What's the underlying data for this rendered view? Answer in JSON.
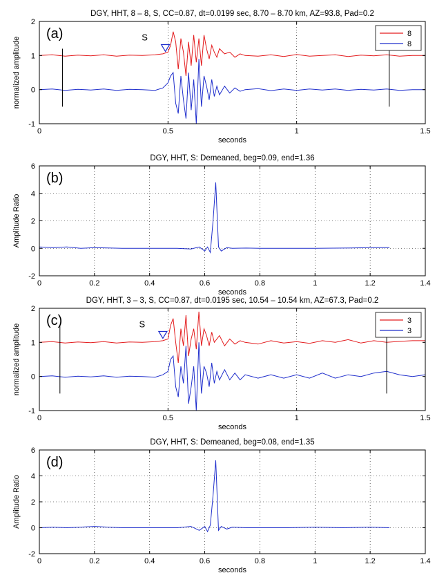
{
  "chart_data": [
    {
      "type": "line",
      "panel_label": "(a)",
      "title": "DGY, HHT, 8 – 8, S, CC=0.87,  dt=0.0199 sec,  8.70 – 8.70 km, AZ=93.8, Pad=0.2",
      "xlabel": "seconds",
      "ylabel": "normalized amplitude",
      "xlim": [
        0,
        1.5
      ],
      "ylim": [
        -1,
        2
      ],
      "xticks": [
        0,
        0.5,
        1,
        1.5
      ],
      "yticks": [
        -1,
        0,
        1,
        2
      ],
      "xtick_labels": [
        "0",
        "0.5",
        "1",
        "1.5"
      ],
      "ytick_labels": [
        "-1",
        "0",
        "1",
        "2"
      ],
      "grid": "dotted-vertical",
      "legend": {
        "placement": "top-right",
        "entries": [
          "8",
          "8"
        ]
      },
      "phase_pick": {
        "label": "S",
        "x": 0.49,
        "y": 1.2
      },
      "window_markers": [
        {
          "x": 0.09,
          "y_from": -0.5,
          "y_to": 1.2
        },
        {
          "x": 1.36,
          "y_from": -0.5,
          "y_to": 1.2
        }
      ],
      "series": [
        {
          "name": "8",
          "color": "#e31a1c",
          "x": [
            0,
            0.05,
            0.1,
            0.15,
            0.2,
            0.25,
            0.3,
            0.35,
            0.4,
            0.45,
            0.48,
            0.5,
            0.51,
            0.52,
            0.53,
            0.54,
            0.55,
            0.56,
            0.57,
            0.58,
            0.59,
            0.6,
            0.61,
            0.62,
            0.63,
            0.64,
            0.65,
            0.66,
            0.67,
            0.68,
            0.69,
            0.7,
            0.72,
            0.74,
            0.76,
            0.78,
            0.8,
            0.85,
            0.9,
            0.95,
            1.0,
            1.05,
            1.1,
            1.15,
            1.2,
            1.25,
            1.3,
            1.35,
            1.4,
            1.45,
            1.5
          ],
          "y": [
            1.0,
            1.02,
            0.98,
            1.01,
            0.99,
            1.02,
            0.98,
            1.01,
            1.0,
            1.02,
            1.05,
            1.1,
            1.3,
            1.7,
            1.4,
            0.6,
            1.5,
            1.1,
            0.4,
            1.4,
            0.7,
            1.6,
            0.8,
            1.5,
            0.7,
            1.6,
            1.2,
            0.9,
            1.3,
            1.1,
            0.95,
            1.2,
            1.05,
            1.1,
            0.95,
            1.05,
            1.0,
            0.98,
            1.02,
            0.97,
            1.03,
            0.98,
            1.0,
            1.02,
            0.97,
            1.01,
            0.99,
            1.02,
            0.98,
            1.0,
            1.0
          ]
        },
        {
          "name": "8",
          "color": "#1f2ecc",
          "x": [
            0,
            0.05,
            0.1,
            0.15,
            0.2,
            0.25,
            0.3,
            0.35,
            0.4,
            0.45,
            0.48,
            0.5,
            0.51,
            0.52,
            0.53,
            0.54,
            0.55,
            0.56,
            0.57,
            0.58,
            0.59,
            0.6,
            0.61,
            0.62,
            0.63,
            0.64,
            0.65,
            0.66,
            0.67,
            0.68,
            0.69,
            0.7,
            0.72,
            0.74,
            0.76,
            0.78,
            0.8,
            0.85,
            0.9,
            0.95,
            1.0,
            1.05,
            1.1,
            1.15,
            1.2,
            1.25,
            1.3,
            1.35,
            1.4,
            1.45,
            1.5
          ],
          "y": [
            0.0,
            0.02,
            -0.02,
            0.01,
            -0.01,
            0.02,
            -0.02,
            0.01,
            0.0,
            -0.02,
            0.05,
            0.2,
            0.4,
            0.5,
            -0.4,
            -0.7,
            0.4,
            -0.3,
            -0.85,
            0.5,
            -0.6,
            0.3,
            -1.0,
            0.9,
            -0.5,
            0.4,
            0.1,
            -0.3,
            0.3,
            -0.2,
            0.1,
            -0.15,
            0.1,
            -0.1,
            0.05,
            -0.05,
            0.0,
            0.03,
            -0.03,
            0.02,
            -0.02,
            0.02,
            -0.01,
            0.02,
            -0.02,
            0.01,
            -0.01,
            0.02,
            -0.02,
            0.0,
            0.0
          ]
        }
      ]
    },
    {
      "type": "line",
      "panel_label": "(b)",
      "title": "DGY, HHT, S: Demeaned, beg=0.09, end=1.36",
      "xlabel": "seconds",
      "ylabel": "Amplitude Ratio",
      "xlim": [
        0,
        1.4
      ],
      "ylim": [
        -2,
        6
      ],
      "xticks": [
        0,
        0.2,
        0.4,
        0.6,
        0.8,
        1,
        1.2,
        1.4
      ],
      "yticks": [
        -2,
        0,
        2,
        4,
        6
      ],
      "xtick_labels": [
        "0",
        "0.2",
        "0.4",
        "0.6",
        "0.8",
        "1",
        "1.2",
        "1.4"
      ],
      "ytick_labels": [
        "-2",
        "0",
        "2",
        "4",
        "6"
      ],
      "grid": "dotted-both",
      "series": [
        {
          "name": "",
          "color": "#1f2ecc",
          "x": [
            0,
            0.05,
            0.1,
            0.15,
            0.2,
            0.3,
            0.4,
            0.5,
            0.55,
            0.58,
            0.6,
            0.61,
            0.62,
            0.63,
            0.64,
            0.65,
            0.66,
            0.68,
            0.7,
            0.75,
            0.8,
            0.9,
            1.0,
            1.1,
            1.2,
            1.27
          ],
          "y": [
            0.1,
            0.05,
            0.1,
            0.0,
            0.05,
            0.0,
            0.0,
            0.0,
            -0.05,
            0.1,
            -0.2,
            0.1,
            -0.3,
            2.0,
            4.8,
            0.1,
            -0.2,
            0.05,
            0.0,
            0.02,
            0.0,
            0.0,
            0.0,
            0.02,
            0.05,
            0.05
          ]
        }
      ]
    },
    {
      "type": "line",
      "panel_label": "(c)",
      "title": "DGY, HHT, 3 – 3, S, CC=0.87,  dt=0.0195 sec,  10.54 – 10.54 km, AZ=67.3, Pad=0.2",
      "xlabel": "seconds",
      "ylabel": "normalized amplitude",
      "xlim": [
        0,
        1.5
      ],
      "ylim": [
        -1,
        2
      ],
      "xticks": [
        0,
        0.5,
        1,
        1.5
      ],
      "yticks": [
        -1,
        0,
        1,
        2
      ],
      "xtick_labels": [
        "0",
        "0.5",
        "1",
        "1.5"
      ],
      "ytick_labels": [
        "-1",
        "0",
        "1",
        "2"
      ],
      "grid": "dotted-vertical",
      "legend": {
        "placement": "top-right",
        "entries": [
          "3",
          "3"
        ]
      },
      "phase_pick": {
        "label": "S",
        "x": 0.48,
        "y": 1.2
      },
      "window_markers": [
        {
          "x": 0.08,
          "y_from": -0.5,
          "y_to": 1.5
        },
        {
          "x": 1.35,
          "y_from": -0.5,
          "y_to": 1.5
        }
      ],
      "series": [
        {
          "name": "3",
          "color": "#e31a1c",
          "x": [
            0,
            0.05,
            0.1,
            0.15,
            0.2,
            0.25,
            0.3,
            0.35,
            0.4,
            0.45,
            0.48,
            0.5,
            0.51,
            0.52,
            0.53,
            0.54,
            0.55,
            0.56,
            0.57,
            0.58,
            0.59,
            0.6,
            0.61,
            0.62,
            0.63,
            0.64,
            0.65,
            0.66,
            0.67,
            0.68,
            0.69,
            0.7,
            0.72,
            0.74,
            0.76,
            0.78,
            0.8,
            0.85,
            0.9,
            0.95,
            1.0,
            1.05,
            1.1,
            1.15,
            1.2,
            1.25,
            1.3,
            1.35,
            1.4,
            1.45,
            1.5
          ],
          "y": [
            1.0,
            1.02,
            0.98,
            1.01,
            0.99,
            1.02,
            0.98,
            1.01,
            1.0,
            1.02,
            1.05,
            1.1,
            1.5,
            1.7,
            1.0,
            0.4,
            1.4,
            0.9,
            1.8,
            0.6,
            1.1,
            1.4,
            0.8,
            1.9,
            0.9,
            1.4,
            1.2,
            0.9,
            1.3,
            1.0,
            1.1,
            1.2,
            0.9,
            1.1,
            0.95,
            1.05,
            1.0,
            0.95,
            1.05,
            0.98,
            1.02,
            0.97,
            1.05,
            1.0,
            1.08,
            0.98,
            1.05,
            1.0,
            1.03,
            1.05,
            1.05
          ]
        },
        {
          "name": "3",
          "color": "#1f2ecc",
          "x": [
            0,
            0.05,
            0.1,
            0.15,
            0.2,
            0.25,
            0.3,
            0.35,
            0.4,
            0.45,
            0.48,
            0.5,
            0.51,
            0.52,
            0.53,
            0.54,
            0.55,
            0.56,
            0.57,
            0.58,
            0.59,
            0.6,
            0.61,
            0.62,
            0.63,
            0.64,
            0.65,
            0.66,
            0.67,
            0.68,
            0.69,
            0.7,
            0.72,
            0.74,
            0.76,
            0.78,
            0.8,
            0.85,
            0.9,
            0.95,
            1.0,
            1.05,
            1.1,
            1.15,
            1.2,
            1.25,
            1.3,
            1.35,
            1.4,
            1.45,
            1.5
          ],
          "y": [
            0.0,
            0.02,
            -0.02,
            0.01,
            -0.01,
            0.02,
            -0.02,
            0.01,
            0.0,
            -0.02,
            0.05,
            0.15,
            0.5,
            0.6,
            -0.3,
            -0.6,
            0.3,
            -0.2,
            0.9,
            -0.8,
            -0.3,
            0.3,
            -1.0,
            1.0,
            -0.5,
            0.3,
            0.1,
            -0.3,
            0.4,
            -0.2,
            0.15,
            -0.1,
            0.2,
            -0.1,
            0.1,
            -0.1,
            0.05,
            -0.05,
            0.05,
            -0.05,
            0.05,
            -0.05,
            0.1,
            -0.05,
            0.05,
            0.0,
            0.1,
            0.15,
            0.05,
            0.0,
            0.05
          ]
        }
      ]
    },
    {
      "type": "line",
      "panel_label": "(d)",
      "title": "DGY, HHT, S: Demeaned, beg=0.08, end=1.35",
      "xlabel": "seconds",
      "ylabel": "Amplitude Ratio",
      "xlim": [
        0,
        1.4
      ],
      "ylim": [
        -2,
        6
      ],
      "xticks": [
        0,
        0.2,
        0.4,
        0.6,
        0.8,
        1,
        1.2,
        1.4
      ],
      "yticks": [
        -2,
        0,
        2,
        4,
        6
      ],
      "xtick_labels": [
        "0",
        "0.2",
        "0.4",
        "0.6",
        "0.8",
        "1",
        "1.2",
        "1.4"
      ],
      "ytick_labels": [
        "-2",
        "0",
        "2",
        "4",
        "6"
      ],
      "grid": "dotted-both",
      "series": [
        {
          "name": "",
          "color": "#1f2ecc",
          "x": [
            0,
            0.05,
            0.1,
            0.15,
            0.2,
            0.25,
            0.3,
            0.4,
            0.5,
            0.55,
            0.58,
            0.6,
            0.61,
            0.62,
            0.63,
            0.64,
            0.65,
            0.66,
            0.68,
            0.7,
            0.75,
            0.8,
            0.9,
            1.0,
            1.1,
            1.2,
            1.27
          ],
          "y": [
            0.0,
            0.05,
            0.0,
            0.05,
            0.1,
            0.05,
            0.0,
            0.0,
            0.0,
            0.1,
            -0.2,
            0.1,
            -0.3,
            0.2,
            2.5,
            5.2,
            -0.2,
            0.1,
            -0.1,
            0.05,
            0.0,
            0.0,
            0.0,
            0.05,
            0.0,
            0.05,
            0.0
          ]
        }
      ]
    }
  ]
}
